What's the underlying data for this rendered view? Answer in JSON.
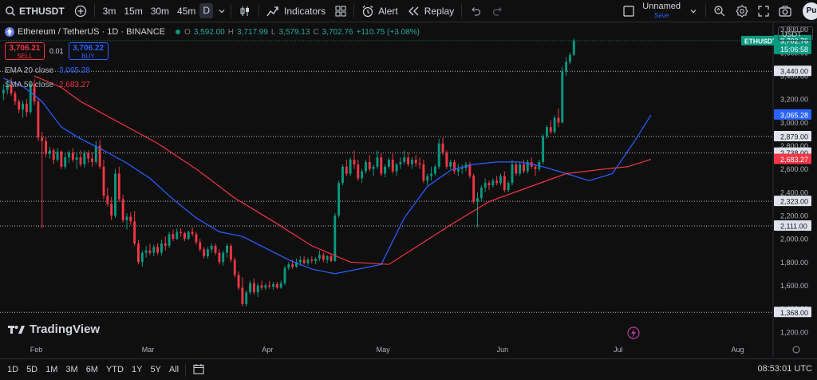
{
  "toolbar": {
    "symbol": "ETHUSDT",
    "intervals": [
      "3m",
      "15m",
      "30m",
      "45m",
      "D"
    ],
    "active_interval": "D",
    "indicators_label": "Indicators",
    "alert_label": "Alert",
    "replay_label": "Replay",
    "layout_name": "Unnamed",
    "layout_status": "Save",
    "avatar_initials": "Pu"
  },
  "legend": {
    "title": "Ethereum / TetherUS · 1D · BINANCE",
    "o_label": "O",
    "o_value": "3,592.00",
    "h_label": "H",
    "h_value": "3,717.99",
    "l_label": "L",
    "l_value": "3,579.13",
    "c_label": "C",
    "c_value": "3,702.76",
    "change": "+110.75 (+3.08%)",
    "sell_price": "3,706.21",
    "sell_label": "SELL",
    "spread": "0.01",
    "buy_price": "3,706.22",
    "buy_label": "BUY",
    "ema_label": "EMA 20 close",
    "ema_value": "3,065.28",
    "sma_label": "SMA 50 close",
    "sma_value": "2,683.27"
  },
  "price_scale": {
    "currency": "USDT",
    "ticks": [
      "3,800.00",
      "3,600.00",
      "3,400.00",
      "3,200.00",
      "3,000.00",
      "2,800.00",
      "2,600.00",
      "2,400.00",
      "2,200.00",
      "2,000.00",
      "1,800.00",
      "1,600.00",
      "1,400.00",
      "1,200.00"
    ]
  },
  "chart_data": {
    "type": "candlestick",
    "symbol": "ETHUSDT",
    "timeframe": "1D",
    "exchange": "BINANCE",
    "ylim": [
      1130,
      3860
    ],
    "x_labels": [
      "Feb",
      "Mar",
      "Apr",
      "May",
      "Jun",
      "Jul",
      "Aug"
    ],
    "x_label_days": [
      9,
      38,
      69,
      99,
      130,
      160,
      191
    ],
    "total_days": 200,
    "last_day": 168,
    "last_price_tag": {
      "symbol": "ETHUSDT",
      "price": "3,702.76",
      "countdown": "15:06:58",
      "value": 3702.76,
      "color": "#089981"
    },
    "level_lines": [
      {
        "label": "3,440.00",
        "value": 3440
      },
      {
        "label": "2,879.00",
        "value": 2879
      },
      {
        "label": "2,738.00",
        "value": 2738
      },
      {
        "label": "2,323.00",
        "value": 2323
      },
      {
        "label": "2,111.00",
        "value": 2111
      },
      {
        "label": "1,368.00",
        "value": 1368
      }
    ],
    "indicator_tags": [
      {
        "label": "3,065.28",
        "value": 3065.28,
        "color": "#2962ff"
      },
      {
        "label": "2,683.27",
        "value": 2683.27,
        "color": "#f23645"
      }
    ],
    "series": [
      {
        "name": "EMA 20 close",
        "color": "#2962ff",
        "points": [
          [
            0,
            3380
          ],
          [
            5,
            3310
          ],
          [
            10,
            3180
          ],
          [
            15,
            2960
          ],
          [
            20,
            2860
          ],
          [
            26,
            2760
          ],
          [
            32,
            2650
          ],
          [
            38,
            2520
          ],
          [
            44,
            2340
          ],
          [
            50,
            2180
          ],
          [
            56,
            2060
          ],
          [
            62,
            2020
          ],
          [
            68,
            1920
          ],
          [
            74,
            1820
          ],
          [
            80,
            1740
          ],
          [
            86,
            1700
          ],
          [
            92,
            1740
          ],
          [
            98,
            1780
          ],
          [
            104,
            2180
          ],
          [
            110,
            2450
          ],
          [
            116,
            2590
          ],
          [
            122,
            2640
          ],
          [
            128,
            2660
          ],
          [
            134,
            2660
          ],
          [
            140,
            2620
          ],
          [
            146,
            2560
          ],
          [
            152,
            2500
          ],
          [
            158,
            2560
          ],
          [
            164,
            2850
          ],
          [
            168,
            3065
          ]
        ]
      },
      {
        "name": "SMA 50 close",
        "color": "#f23645",
        "points": [
          [
            8,
            3400
          ],
          [
            15,
            3300
          ],
          [
            20,
            3180
          ],
          [
            30,
            3000
          ],
          [
            40,
            2820
          ],
          [
            50,
            2600
          ],
          [
            60,
            2350
          ],
          [
            70,
            2150
          ],
          [
            80,
            1940
          ],
          [
            90,
            1800
          ],
          [
            100,
            1780
          ],
          [
            108,
            1950
          ],
          [
            116,
            2120
          ],
          [
            126,
            2320
          ],
          [
            136,
            2440
          ],
          [
            146,
            2560
          ],
          [
            156,
            2600
          ],
          [
            162,
            2620
          ],
          [
            168,
            2683
          ]
        ]
      }
    ],
    "candles": [
      [
        0,
        3250,
        3330,
        3190,
        3280
      ],
      [
        1,
        3280,
        3370,
        3240,
        3320
      ],
      [
        2,
        3320,
        3380,
        3230,
        3250
      ],
      [
        3,
        3250,
        3270,
        3150,
        3180
      ],
      [
        4,
        3180,
        3200,
        3080,
        3110
      ],
      [
        5,
        3110,
        3190,
        3040,
        3160
      ],
      [
        6,
        3160,
        3200,
        3050,
        3090
      ],
      [
        7,
        3090,
        3360,
        3070,
        3330
      ],
      [
        8,
        3330,
        3370,
        3150,
        3180
      ],
      [
        9,
        3180,
        3200,
        2840,
        2870
      ],
      [
        10,
        2870,
        2920,
        2090,
        2840
      ],
      [
        11,
        2840,
        2880,
        2700,
        2730
      ],
      [
        12,
        2730,
        2790,
        2690,
        2760
      ],
      [
        13,
        2760,
        2780,
        2640,
        2680
      ],
      [
        14,
        2680,
        2780,
        2660,
        2750
      ],
      [
        15,
        2750,
        2760,
        2600,
        2620
      ],
      [
        16,
        2620,
        2740,
        2600,
        2700
      ],
      [
        17,
        2700,
        2760,
        2650,
        2740
      ],
      [
        18,
        2740,
        2780,
        2660,
        2680
      ],
      [
        19,
        2680,
        2750,
        2600,
        2700
      ],
      [
        20,
        2700,
        2760,
        2620,
        2640
      ],
      [
        21,
        2640,
        2760,
        2610,
        2740
      ],
      [
        22,
        2740,
        2760,
        2650,
        2690
      ],
      [
        23,
        2690,
        2740,
        2620,
        2660
      ],
      [
        24,
        2660,
        2840,
        2640,
        2800
      ],
      [
        25,
        2800,
        2850,
        2600,
        2620
      ],
      [
        26,
        2620,
        2680,
        2340,
        2370
      ],
      [
        27,
        2370,
        2440,
        2280,
        2300
      ],
      [
        28,
        2300,
        2360,
        2160,
        2200
      ],
      [
        29,
        2200,
        2600,
        2180,
        2560
      ],
      [
        30,
        2560,
        2620,
        2320,
        2340
      ],
      [
        31,
        2340,
        2380,
        2140,
        2160
      ],
      [
        32,
        2160,
        2220,
        2080,
        2190
      ],
      [
        33,
        2190,
        2230,
        2120,
        2150
      ],
      [
        34,
        2150,
        2240,
        1940,
        1960
      ],
      [
        35,
        1960,
        1990,
        1780,
        1800
      ],
      [
        36,
        1800,
        1900,
        1760,
        1880
      ],
      [
        37,
        1880,
        1940,
        1840,
        1900
      ],
      [
        38,
        1900,
        1960,
        1860,
        1880
      ],
      [
        39,
        1880,
        1950,
        1850,
        1930
      ],
      [
        40,
        1930,
        1960,
        1860,
        1880
      ],
      [
        41,
        1880,
        1990,
        1860,
        1960
      ],
      [
        42,
        1960,
        2020,
        1900,
        1940
      ],
      [
        43,
        1940,
        2060,
        1920,
        2040
      ],
      [
        44,
        2040,
        2080,
        1980,
        2000
      ],
      [
        45,
        2000,
        2090,
        1990,
        2060
      ],
      [
        46,
        2060,
        2090,
        2020,
        2050
      ],
      [
        47,
        2050,
        2060,
        1980,
        2000
      ],
      [
        48,
        2000,
        2070,
        1990,
        2060
      ],
      [
        49,
        2060,
        2100,
        2020,
        2040
      ],
      [
        50,
        2040,
        2060,
        1950,
        1970
      ],
      [
        51,
        1970,
        2000,
        1890,
        1910
      ],
      [
        52,
        1910,
        1930,
        1830,
        1850
      ],
      [
        53,
        1850,
        1930,
        1830,
        1910
      ],
      [
        54,
        1910,
        1960,
        1880,
        1940
      ],
      [
        55,
        1940,
        1960,
        1860,
        1880
      ],
      [
        56,
        1880,
        1910,
        1780,
        1800
      ],
      [
        57,
        1800,
        1900,
        1770,
        1880
      ],
      [
        58,
        1880,
        1960,
        1840,
        1940
      ],
      [
        59,
        1940,
        1960,
        1800,
        1820
      ],
      [
        60,
        1820,
        1840,
        1670,
        1690
      ],
      [
        61,
        1690,
        1720,
        1560,
        1580
      ],
      [
        62,
        1580,
        1670,
        1420,
        1440
      ],
      [
        63,
        1440,
        1560,
        1420,
        1540
      ],
      [
        64,
        1540,
        1640,
        1520,
        1620
      ],
      [
        65,
        1620,
        1660,
        1520,
        1540
      ],
      [
        66,
        1540,
        1620,
        1500,
        1600
      ],
      [
        67,
        1600,
        1640,
        1560,
        1580
      ],
      [
        68,
        1580,
        1620,
        1560,
        1600
      ],
      [
        69,
        1600,
        1640,
        1570,
        1590
      ],
      [
        70,
        1590,
        1630,
        1560,
        1610
      ],
      [
        71,
        1610,
        1630,
        1570,
        1580
      ],
      [
        72,
        1580,
        1640,
        1570,
        1620
      ],
      [
        73,
        1620,
        1770,
        1600,
        1750
      ],
      [
        74,
        1750,
        1800,
        1730,
        1780
      ],
      [
        75,
        1780,
        1820,
        1740,
        1760
      ],
      [
        76,
        1760,
        1830,
        1750,
        1800
      ],
      [
        77,
        1800,
        1850,
        1770,
        1820
      ],
      [
        78,
        1820,
        1850,
        1780,
        1790
      ],
      [
        79,
        1790,
        1840,
        1770,
        1820
      ],
      [
        80,
        1820,
        1850,
        1790,
        1810
      ],
      [
        81,
        1810,
        1840,
        1780,
        1830
      ],
      [
        82,
        1830,
        1900,
        1810,
        1860
      ],
      [
        83,
        1860,
        1880,
        1800,
        1820
      ],
      [
        84,
        1820,
        1860,
        1790,
        1850
      ],
      [
        85,
        1850,
        1870,
        1800,
        1810
      ],
      [
        86,
        1810,
        2220,
        1800,
        2200
      ],
      [
        87,
        2200,
        2500,
        2180,
        2480
      ],
      [
        88,
        2480,
        2640,
        2460,
        2620
      ],
      [
        89,
        2620,
        2680,
        2540,
        2560
      ],
      [
        90,
        2560,
        2700,
        2540,
        2680
      ],
      [
        91,
        2680,
        2760,
        2600,
        2640
      ],
      [
        92,
        2640,
        2680,
        2500,
        2520
      ],
      [
        93,
        2520,
        2600,
        2480,
        2580
      ],
      [
        94,
        2580,
        2680,
        2560,
        2660
      ],
      [
        95,
        2660,
        2720,
        2580,
        2600
      ],
      [
        96,
        2600,
        2640,
        2540,
        2620
      ],
      [
        97,
        2620,
        2760,
        2600,
        2700
      ],
      [
        98,
        2700,
        2740,
        2540,
        2560
      ],
      [
        99,
        2560,
        2640,
        2530,
        2620
      ],
      [
        100,
        2620,
        2700,
        2600,
        2680
      ],
      [
        101,
        2680,
        2740,
        2560,
        2580
      ],
      [
        102,
        2580,
        2650,
        2540,
        2640
      ],
      [
        103,
        2640,
        2700,
        2600,
        2660
      ],
      [
        104,
        2660,
        2760,
        2640,
        2700
      ],
      [
        105,
        2700,
        2740,
        2620,
        2640
      ],
      [
        106,
        2640,
        2700,
        2600,
        2680
      ],
      [
        107,
        2680,
        2720,
        2620,
        2650
      ],
      [
        108,
        2650,
        2700,
        2600,
        2640
      ],
      [
        109,
        2640,
        2680,
        2480,
        2500
      ],
      [
        110,
        2500,
        2560,
        2460,
        2540
      ],
      [
        111,
        2540,
        2620,
        2500,
        2560
      ],
      [
        112,
        2560,
        2640,
        2540,
        2620
      ],
      [
        113,
        2620,
        2860,
        2600,
        2820
      ],
      [
        114,
        2820,
        2870,
        2720,
        2740
      ],
      [
        115,
        2740,
        2760,
        2600,
        2620
      ],
      [
        116,
        2620,
        2680,
        2600,
        2660
      ],
      [
        117,
        2660,
        2680,
        2560,
        2580
      ],
      [
        118,
        2580,
        2640,
        2540,
        2600
      ],
      [
        119,
        2600,
        2640,
        2560,
        2610
      ],
      [
        120,
        2610,
        2660,
        2580,
        2640
      ],
      [
        121,
        2640,
        2660,
        2520,
        2540
      ],
      [
        122,
        2540,
        2560,
        2300,
        2320
      ],
      [
        123,
        2320,
        2400,
        2100,
        2350
      ],
      [
        124,
        2350,
        2460,
        2320,
        2440
      ],
      [
        125,
        2440,
        2520,
        2400,
        2480
      ],
      [
        126,
        2480,
        2500,
        2420,
        2460
      ],
      [
        127,
        2460,
        2520,
        2440,
        2500
      ],
      [
        128,
        2500,
        2540,
        2460,
        2480
      ],
      [
        129,
        2480,
        2560,
        2460,
        2540
      ],
      [
        130,
        2540,
        2580,
        2400,
        2420
      ],
      [
        131,
        2420,
        2500,
        2400,
        2480
      ],
      [
        132,
        2480,
        2680,
        2460,
        2640
      ],
      [
        133,
        2640,
        2660,
        2540,
        2560
      ],
      [
        134,
        2560,
        2660,
        2540,
        2640
      ],
      [
        135,
        2640,
        2680,
        2560,
        2580
      ],
      [
        136,
        2580,
        2680,
        2560,
        2660
      ],
      [
        137,
        2660,
        2700,
        2600,
        2620
      ],
      [
        138,
        2620,
        2640,
        2540,
        2600
      ],
      [
        139,
        2600,
        2680,
        2580,
        2660
      ],
      [
        140,
        2660,
        2900,
        2640,
        2880
      ],
      [
        141,
        2880,
        2980,
        2860,
        2960
      ],
      [
        142,
        2960,
        3020,
        2900,
        2920
      ],
      [
        143,
        2920,
        3060,
        2900,
        3040
      ],
      [
        144,
        3040,
        3120,
        2960,
        3000
      ],
      [
        145,
        3000,
        3480,
        2990,
        3440
      ],
      [
        146,
        3440,
        3560,
        3400,
        3520
      ],
      [
        147,
        3520,
        3600,
        3500,
        3580
      ],
      [
        148,
        3580,
        3720,
        3570,
        3703
      ]
    ]
  },
  "branding": {
    "logo_text": "TradingView"
  },
  "bottombar": {
    "ranges": [
      "1D",
      "5D",
      "1M",
      "3M",
      "6M",
      "YTD",
      "1Y",
      "5Y",
      "All"
    ],
    "clock": "08:53:01 UTC"
  }
}
